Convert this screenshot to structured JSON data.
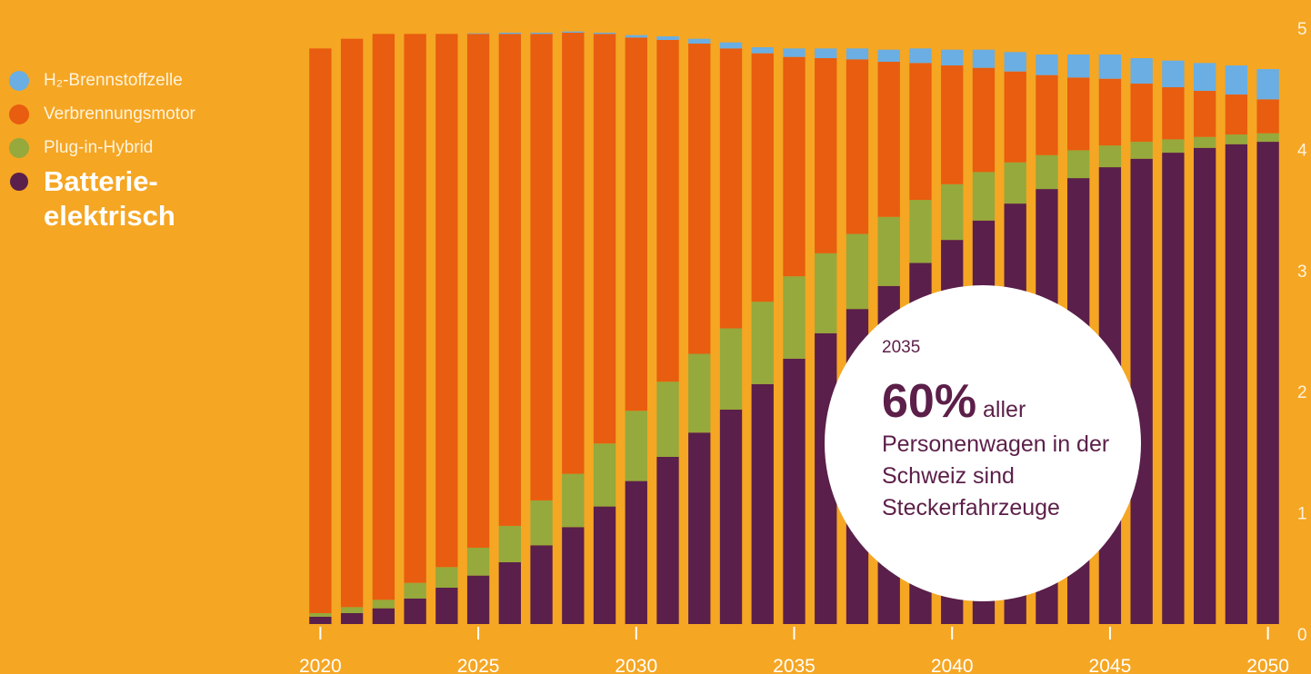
{
  "legend": {
    "items": [
      {
        "key": "h2",
        "label": "H₂-Brennstoffzelle",
        "color": "#6AAEE3"
      },
      {
        "key": "ice",
        "label": "Verbrennungsmotor",
        "color": "#E85D0F"
      },
      {
        "key": "phev",
        "label": "Plug-in-Hybrid",
        "color": "#95A93C"
      },
      {
        "key": "bev",
        "label": "Batterie-elektrisch",
        "color": "#5A1F4A"
      }
    ]
  },
  "callout": {
    "year": "2035",
    "percent": "60%",
    "text_after_percent": "aller",
    "text": "Personenwagen in der Schweiz sind Steckerfahrzeuge"
  },
  "chart_data": {
    "type": "bar",
    "stacked": true,
    "title": "",
    "xlabel": "",
    "ylabel": "",
    "x": [
      2020,
      2021,
      2022,
      2023,
      2024,
      2025,
      2026,
      2027,
      2028,
      2029,
      2030,
      2031,
      2032,
      2033,
      2034,
      2035,
      2036,
      2037,
      2038,
      2039,
      2040,
      2041,
      2042,
      2043,
      2044,
      2045,
      2046,
      2047,
      2048,
      2049,
      2050
    ],
    "x_tick_labels": [
      "2020",
      "2025",
      "2030",
      "2035",
      "2040",
      "2045",
      "2050"
    ],
    "y_tick_labels": [
      "0",
      "1",
      "2",
      "3",
      "4",
      "5"
    ],
    "ylim": [
      0,
      5
    ],
    "legend_position": "top-left",
    "grid": false,
    "series": [
      {
        "name": "Batterie-elektrisch",
        "color": "#5A1F4A",
        "values": [
          0.06,
          0.09,
          0.13,
          0.21,
          0.3,
          0.4,
          0.51,
          0.65,
          0.8,
          0.97,
          1.18,
          1.38,
          1.58,
          1.77,
          1.98,
          2.19,
          2.4,
          2.6,
          2.79,
          2.98,
          3.17,
          3.33,
          3.47,
          3.59,
          3.68,
          3.77,
          3.84,
          3.89,
          3.93,
          3.96,
          3.98
        ]
      },
      {
        "name": "Plug-in-Hybrid",
        "color": "#95A93C",
        "values": [
          0.03,
          0.05,
          0.07,
          0.13,
          0.17,
          0.23,
          0.3,
          0.37,
          0.44,
          0.52,
          0.58,
          0.62,
          0.65,
          0.67,
          0.68,
          0.68,
          0.66,
          0.62,
          0.57,
          0.52,
          0.46,
          0.4,
          0.34,
          0.28,
          0.23,
          0.18,
          0.14,
          0.11,
          0.09,
          0.08,
          0.07
        ]
      },
      {
        "name": "Verbrennungsmotor",
        "color": "#E85D0F",
        "values": [
          4.66,
          4.69,
          4.67,
          4.53,
          4.4,
          4.24,
          4.06,
          3.85,
          3.64,
          3.38,
          3.08,
          2.82,
          2.56,
          2.31,
          2.05,
          1.81,
          1.61,
          1.44,
          1.28,
          1.13,
          0.98,
          0.86,
          0.75,
          0.66,
          0.6,
          0.55,
          0.48,
          0.43,
          0.38,
          0.33,
          0.28
        ]
      },
      {
        "name": "H₂-Brennstoffzelle",
        "color": "#6AAEE3",
        "values": [
          0.0,
          0.0,
          0.0,
          0.0,
          0.0,
          0.005,
          0.01,
          0.01,
          0.01,
          0.01,
          0.02,
          0.03,
          0.04,
          0.05,
          0.05,
          0.07,
          0.08,
          0.09,
          0.1,
          0.12,
          0.13,
          0.15,
          0.16,
          0.17,
          0.19,
          0.2,
          0.21,
          0.22,
          0.23,
          0.24,
          0.25
        ]
      }
    ]
  }
}
